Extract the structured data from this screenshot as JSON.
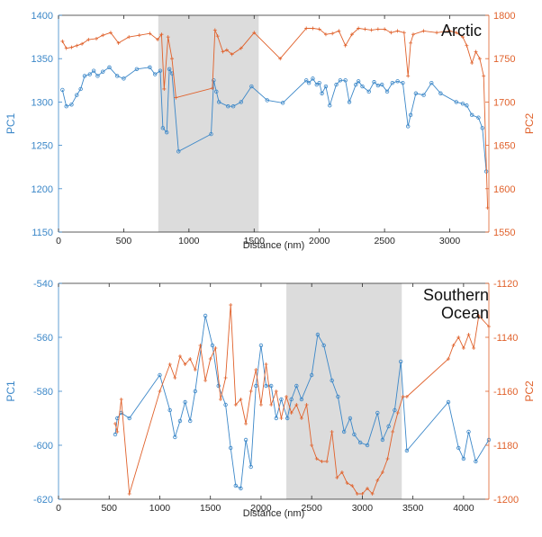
{
  "colors": {
    "pc1": "#3b87c8",
    "pc2": "#e0612b",
    "shade": "#dcdcdc",
    "axis": "#262626"
  },
  "chart_data": [
    {
      "type": "line",
      "annotation": "Arctic",
      "xlabel": "Distance (nm)",
      "ylabel_left": "PC1",
      "ylabel_right": "PC2",
      "xlim": [
        0,
        3300
      ],
      "ylim_left": [
        1150,
        1400
      ],
      "ylim_right": [
        1550,
        1800
      ],
      "xticks": [
        0,
        500,
        1000,
        1500,
        2000,
        2500,
        3000
      ],
      "yticks_left": [
        1150,
        1200,
        1250,
        1300,
        1350,
        1400
      ],
      "yticks_right": [
        1550,
        1600,
        1650,
        1700,
        1750,
        1800
      ],
      "shaded_region": [
        765,
        1535
      ],
      "series": [
        {
          "name": "PC1",
          "axis": "left",
          "marker": "circle",
          "x": [
            30,
            60,
            100,
            140,
            170,
            200,
            240,
            270,
            300,
            340,
            390,
            450,
            500,
            600,
            700,
            740,
            780,
            800,
            830,
            850,
            870,
            920,
            1170,
            1190,
            1210,
            1230,
            1300,
            1340,
            1400,
            1480,
            1600,
            1720,
            1900,
            1920,
            1950,
            1980,
            2000,
            2020,
            2050,
            2080,
            2130,
            2160,
            2200,
            2230,
            2280,
            2300,
            2330,
            2380,
            2420,
            2450,
            2480,
            2520,
            2560,
            2600,
            2640,
            2680,
            2700,
            2740,
            2800,
            2860,
            2930,
            3050,
            3100,
            3130,
            3170,
            3220,
            3250,
            3280
          ],
          "y": [
            1314,
            1295,
            1297,
            1308,
            1315,
            1330,
            1332,
            1336,
            1330,
            1335,
            1340,
            1330,
            1327,
            1338,
            1340,
            1332,
            1336,
            1270,
            1265,
            1338,
            1333,
            1243,
            1263,
            1325,
            1312,
            1300,
            1295,
            1295,
            1300,
            1318,
            1302,
            1299,
            1325,
            1322,
            1327,
            1320,
            1322,
            1310,
            1318,
            1296,
            1320,
            1325,
            1325,
            1300,
            1320,
            1324,
            1318,
            1312,
            1323,
            1319,
            1320,
            1312,
            1322,
            1324,
            1322,
            1272,
            1285,
            1310,
            1308,
            1322,
            1310,
            1300,
            1298,
            1296,
            1285,
            1282,
            1270,
            1220
          ]
        },
        {
          "name": "PC2",
          "axis": "right",
          "marker": "plus",
          "x": [
            30,
            60,
            100,
            140,
            180,
            230,
            290,
            340,
            400,
            460,
            540,
            620,
            700,
            760,
            790,
            810,
            840,
            870,
            900,
            1180,
            1200,
            1220,
            1260,
            1290,
            1330,
            1400,
            1500,
            1700,
            1900,
            1950,
            2000,
            2050,
            2100,
            2150,
            2200,
            2250,
            2300,
            2350,
            2400,
            2450,
            2500,
            2550,
            2600,
            2650,
            2680,
            2700,
            2720,
            2800,
            2900,
            3000,
            3050,
            3100,
            3130,
            3170,
            3200,
            3230,
            3260,
            3290
          ],
          "y": [
            1770,
            1762,
            1763,
            1765,
            1767,
            1772,
            1773,
            1777,
            1780,
            1768,
            1775,
            1777,
            1779,
            1772,
            1778,
            1715,
            1775,
            1750,
            1705,
            1716,
            1783,
            1776,
            1758,
            1760,
            1755,
            1762,
            1780,
            1750,
            1785,
            1785,
            1784,
            1778,
            1779,
            1782,
            1765,
            1778,
            1785,
            1784,
            1783,
            1784,
            1784,
            1780,
            1782,
            1780,
            1730,
            1768,
            1778,
            1782,
            1780,
            1782,
            1780,
            1775,
            1765,
            1745,
            1758,
            1750,
            1730,
            1578
          ]
        }
      ]
    },
    {
      "type": "line",
      "annotation": "Southern\nOcean",
      "xlabel": "Distance (nm)",
      "ylabel_left": "PC1",
      "ylabel_right": "PC2",
      "xlim": [
        0,
        4250
      ],
      "ylim_left": [
        -620,
        -540
      ],
      "ylim_right": [
        -1200,
        -1120
      ],
      "xticks": [
        0,
        500,
        1000,
        1500,
        2000,
        2500,
        3000,
        3500,
        4000
      ],
      "yticks_left": [
        -620,
        -600,
        -580,
        -560,
        -540
      ],
      "yticks_right": [
        -1200,
        -1180,
        -1160,
        -1140,
        -1120
      ],
      "shaded_region": [
        2250,
        3390
      ],
      "series": [
        {
          "name": "PC1",
          "axis": "left",
          "marker": "circle",
          "x": [
            560,
            580,
            620,
            700,
            1000,
            1100,
            1150,
            1200,
            1250,
            1300,
            1350,
            1450,
            1520,
            1580,
            1650,
            1700,
            1750,
            1800,
            1850,
            1900,
            1950,
            2000,
            2050,
            2100,
            2150,
            2200,
            2260,
            2300,
            2350,
            2400,
            2500,
            2560,
            2620,
            2700,
            2760,
            2820,
            2880,
            2920,
            2980,
            3050,
            3150,
            3200,
            3260,
            3320,
            3380,
            3440,
            3850,
            3950,
            4000,
            4050,
            4120,
            4250
          ],
          "y": [
            -596,
            -590,
            -588,
            -590,
            -574,
            -587,
            -597,
            -591,
            -584,
            -591,
            -580,
            -552,
            -563,
            -578,
            -585,
            -601,
            -615,
            -616,
            -598,
            -608,
            -578,
            -563,
            -578,
            -578,
            -590,
            -583,
            -590,
            -583,
            -578,
            -583,
            -574,
            -559,
            -563,
            -576,
            -582,
            -595,
            -590,
            -596,
            -599,
            -600,
            -588,
            -598,
            -593,
            -587,
            -569,
            -602,
            -584,
            -601,
            -605,
            -595,
            -606,
            -598
          ]
        },
        {
          "name": "PC2",
          "axis": "right",
          "marker": "plus",
          "x": [
            560,
            580,
            620,
            700,
            1000,
            1100,
            1150,
            1200,
            1250,
            1300,
            1350,
            1400,
            1450,
            1500,
            1550,
            1600,
            1650,
            1700,
            1750,
            1800,
            1850,
            1900,
            1950,
            2000,
            2050,
            2100,
            2150,
            2200,
            2250,
            2300,
            2350,
            2400,
            2450,
            2500,
            2550,
            2600,
            2650,
            2700,
            2750,
            2800,
            2850,
            2900,
            2950,
            3000,
            3050,
            3100,
            3150,
            3200,
            3250,
            3300,
            3350,
            3400,
            3440,
            3850,
            3900,
            3950,
            4000,
            4050,
            4100,
            4150,
            4250
          ],
          "y": [
            -1172,
            -1175,
            -1163,
            -1198,
            -1160,
            -1150,
            -1155,
            -1147,
            -1150,
            -1148,
            -1152,
            -1143,
            -1156,
            -1148,
            -1144,
            -1163,
            -1155,
            -1128,
            -1165,
            -1163,
            -1172,
            -1160,
            -1152,
            -1165,
            -1150,
            -1165,
            -1160,
            -1170,
            -1162,
            -1168,
            -1165,
            -1170,
            -1165,
            -1180,
            -1185,
            -1186,
            -1186,
            -1175,
            -1192,
            -1190,
            -1194,
            -1195,
            -1198,
            -1198,
            -1196,
            -1198,
            -1193,
            -1190,
            -1185,
            -1175,
            -1168,
            -1162,
            -1162,
            -1148,
            -1143,
            -1140,
            -1144,
            -1139,
            -1144,
            -1132,
            -1136
          ]
        }
      ]
    }
  ]
}
